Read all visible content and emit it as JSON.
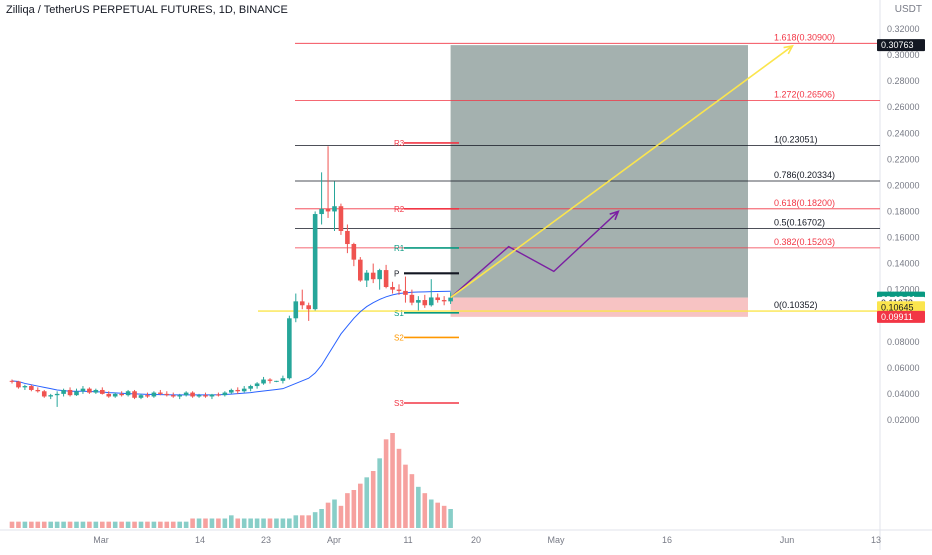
{
  "header": {
    "title": "Zilliqa / TetherUS PERPETUAL FUTURES, 1D, BINANCE",
    "currency": "USDT"
  },
  "colors": {
    "up": "#26a69a",
    "down": "#ef5350",
    "ma": "#2962ff",
    "fib_black": "#131722",
    "fib_red": "#f23645",
    "pivot_red": "#f23645",
    "pivot_green": "#089981",
    "pivot_orange": "#ff9800",
    "forecast": "#7b1fa2",
    "target_arrow": "#fbe54d",
    "profit_zone": "#9aa9a6",
    "loss_zone": "#f6b9b9"
  },
  "chart_data": {
    "type": "candlestick",
    "symbol": "ZILUSDT",
    "interval": "1D",
    "x_ticks": [
      "Mar",
      "14",
      "23",
      "Apr",
      "11",
      "20",
      "May",
      "16",
      "Jun",
      "13"
    ],
    "y_ticks": [
      "0.32000",
      "0.30000",
      "0.28000",
      "0.26000",
      "0.24000",
      "0.22000",
      "0.20000",
      "0.18000",
      "0.16000",
      "0.14000",
      "0.12000",
      "0.10000",
      "0.08000",
      "0.06000",
      "0.04000",
      "0.02000"
    ],
    "ylim": [
      0,
      0.33
    ],
    "price_tags": [
      {
        "label": "0.30763",
        "value": 0.30763,
        "style": "dark"
      },
      {
        "label": "0.11388",
        "value": 0.11388,
        "style": "green"
      },
      {
        "label": "09:18:31",
        "value": 0.11225,
        "style": "green"
      },
      {
        "label": "0.11278",
        "value": 0.10985,
        "style": "plain"
      },
      {
        "label": "0.10645",
        "value": 0.10645,
        "style": "yellow"
      },
      {
        "label": "0.09911",
        "value": 0.09911,
        "style": "red"
      }
    ],
    "candles": [
      {
        "o": 0.05,
        "h": 0.051,
        "l": 0.048,
        "c": 0.0495
      },
      {
        "o": 0.0495,
        "h": 0.05,
        "l": 0.044,
        "c": 0.045
      },
      {
        "o": 0.045,
        "h": 0.047,
        "l": 0.043,
        "c": 0.046
      },
      {
        "o": 0.046,
        "h": 0.047,
        "l": 0.042,
        "c": 0.043
      },
      {
        "o": 0.043,
        "h": 0.045,
        "l": 0.041,
        "c": 0.042
      },
      {
        "o": 0.042,
        "h": 0.043,
        "l": 0.037,
        "c": 0.038
      },
      {
        "o": 0.038,
        "h": 0.04,
        "l": 0.036,
        "c": 0.039
      },
      {
        "o": 0.039,
        "h": 0.042,
        "l": 0.03,
        "c": 0.04
      },
      {
        "o": 0.04,
        "h": 0.044,
        "l": 0.038,
        "c": 0.043
      },
      {
        "o": 0.043,
        "h": 0.045,
        "l": 0.038,
        "c": 0.039
      },
      {
        "o": 0.039,
        "h": 0.044,
        "l": 0.0385,
        "c": 0.042
      },
      {
        "o": 0.042,
        "h": 0.046,
        "l": 0.04,
        "c": 0.044
      },
      {
        "o": 0.044,
        "h": 0.045,
        "l": 0.04,
        "c": 0.041
      },
      {
        "o": 0.041,
        "h": 0.044,
        "l": 0.04,
        "c": 0.043
      },
      {
        "o": 0.043,
        "h": 0.045,
        "l": 0.0395,
        "c": 0.04
      },
      {
        "o": 0.04,
        "h": 0.042,
        "l": 0.037,
        "c": 0.038
      },
      {
        "o": 0.038,
        "h": 0.041,
        "l": 0.037,
        "c": 0.04
      },
      {
        "o": 0.04,
        "h": 0.042,
        "l": 0.038,
        "c": 0.039
      },
      {
        "o": 0.039,
        "h": 0.043,
        "l": 0.038,
        "c": 0.042
      },
      {
        "o": 0.042,
        "h": 0.043,
        "l": 0.036,
        "c": 0.037
      },
      {
        "o": 0.037,
        "h": 0.04,
        "l": 0.036,
        "c": 0.039
      },
      {
        "o": 0.039,
        "h": 0.041,
        "l": 0.037,
        "c": 0.038
      },
      {
        "o": 0.038,
        "h": 0.042,
        "l": 0.037,
        "c": 0.041
      },
      {
        "o": 0.041,
        "h": 0.043,
        "l": 0.039,
        "c": 0.04
      },
      {
        "o": 0.04,
        "h": 0.042,
        "l": 0.038,
        "c": 0.039
      },
      {
        "o": 0.039,
        "h": 0.041,
        "l": 0.037,
        "c": 0.038
      },
      {
        "o": 0.038,
        "h": 0.04,
        "l": 0.036,
        "c": 0.039
      },
      {
        "o": 0.039,
        "h": 0.042,
        "l": 0.038,
        "c": 0.041
      },
      {
        "o": 0.041,
        "h": 0.042,
        "l": 0.037,
        "c": 0.038
      },
      {
        "o": 0.038,
        "h": 0.04,
        "l": 0.037,
        "c": 0.039
      },
      {
        "o": 0.039,
        "h": 0.041,
        "l": 0.037,
        "c": 0.038
      },
      {
        "o": 0.038,
        "h": 0.04,
        "l": 0.036,
        "c": 0.0395
      },
      {
        "o": 0.0395,
        "h": 0.041,
        "l": 0.038,
        "c": 0.039
      },
      {
        "o": 0.039,
        "h": 0.042,
        "l": 0.038,
        "c": 0.041
      },
      {
        "o": 0.041,
        "h": 0.044,
        "l": 0.04,
        "c": 0.043
      },
      {
        "o": 0.043,
        "h": 0.045,
        "l": 0.04,
        "c": 0.042
      },
      {
        "o": 0.042,
        "h": 0.046,
        "l": 0.041,
        "c": 0.044
      },
      {
        "o": 0.044,
        "h": 0.047,
        "l": 0.042,
        "c": 0.046
      },
      {
        "o": 0.046,
        "h": 0.049,
        "l": 0.044,
        "c": 0.048
      },
      {
        "o": 0.048,
        "h": 0.053,
        "l": 0.047,
        "c": 0.051
      },
      {
        "o": 0.051,
        "h": 0.052,
        "l": 0.048,
        "c": 0.05
      },
      {
        "o": 0.05,
        "h": 0.05,
        "l": 0.049,
        "c": 0.05
      },
      {
        "o": 0.05,
        "h": 0.054,
        "l": 0.048,
        "c": 0.052
      },
      {
        "o": 0.052,
        "h": 0.1,
        "l": 0.051,
        "c": 0.098
      },
      {
        "o": 0.098,
        "h": 0.117,
        "l": 0.095,
        "c": 0.111
      },
      {
        "o": 0.111,
        "h": 0.12,
        "l": 0.105,
        "c": 0.108
      },
      {
        "o": 0.108,
        "h": 0.11,
        "l": 0.096,
        "c": 0.105
      },
      {
        "o": 0.105,
        "h": 0.18,
        "l": 0.104,
        "c": 0.178
      },
      {
        "o": 0.178,
        "h": 0.21,
        "l": 0.17,
        "c": 0.182
      },
      {
        "o": 0.182,
        "h": 0.23,
        "l": 0.175,
        "c": 0.18
      },
      {
        "o": 0.18,
        "h": 0.203,
        "l": 0.165,
        "c": 0.184
      },
      {
        "o": 0.184,
        "h": 0.186,
        "l": 0.162,
        "c": 0.165
      },
      {
        "o": 0.165,
        "h": 0.17,
        "l": 0.148,
        "c": 0.155
      },
      {
        "o": 0.155,
        "h": 0.156,
        "l": 0.138,
        "c": 0.143
      },
      {
        "o": 0.143,
        "h": 0.145,
        "l": 0.126,
        "c": 0.127
      },
      {
        "o": 0.127,
        "h": 0.135,
        "l": 0.122,
        "c": 0.133
      },
      {
        "o": 0.133,
        "h": 0.14,
        "l": 0.125,
        "c": 0.128
      },
      {
        "o": 0.128,
        "h": 0.136,
        "l": 0.12,
        "c": 0.135
      },
      {
        "o": 0.135,
        "h": 0.139,
        "l": 0.121,
        "c": 0.122
      },
      {
        "o": 0.122,
        "h": 0.126,
        "l": 0.117,
        "c": 0.12
      },
      {
        "o": 0.12,
        "h": 0.124,
        "l": 0.116,
        "c": 0.119
      },
      {
        "o": 0.119,
        "h": 0.13,
        "l": 0.11,
        "c": 0.116
      },
      {
        "o": 0.116,
        "h": 0.12,
        "l": 0.108,
        "c": 0.11
      },
      {
        "o": 0.11,
        "h": 0.115,
        "l": 0.104,
        "c": 0.112
      },
      {
        "o": 0.112,
        "h": 0.116,
        "l": 0.106,
        "c": 0.108
      },
      {
        "o": 0.108,
        "h": 0.128,
        "l": 0.107,
        "c": 0.114
      },
      {
        "o": 0.114,
        "h": 0.117,
        "l": 0.11,
        "c": 0.112
      },
      {
        "o": 0.112,
        "h": 0.115,
        "l": 0.108,
        "c": 0.111
      },
      {
        "o": 0.111,
        "h": 0.118,
        "l": 0.109,
        "c": 0.1139
      }
    ],
    "moving_average": [
      0.05,
      0.0495,
      0.048,
      0.047,
      0.046,
      0.045,
      0.044,
      0.043,
      0.0425,
      0.042,
      0.042,
      0.042,
      0.0418,
      0.0416,
      0.0414,
      0.041,
      0.0408,
      0.0405,
      0.0402,
      0.04,
      0.0398,
      0.0396,
      0.0395,
      0.0394,
      0.0393,
      0.0392,
      0.0392,
      0.0392,
      0.0392,
      0.0392,
      0.0392,
      0.0392,
      0.0393,
      0.0395,
      0.0398,
      0.0402,
      0.0406,
      0.041,
      0.0416,
      0.0422,
      0.0428,
      0.0434,
      0.044,
      0.046,
      0.048,
      0.05,
      0.052,
      0.056,
      0.062,
      0.07,
      0.078,
      0.086,
      0.092,
      0.098,
      0.103,
      0.107,
      0.11,
      0.1125,
      0.1145,
      0.116,
      0.117,
      0.1175,
      0.118,
      0.1182,
      0.1183,
      0.1185,
      0.1186,
      0.1187,
      0.1188
    ],
    "volumes": [
      2,
      2,
      2,
      2,
      2,
      2,
      2,
      2,
      2,
      2,
      2,
      2,
      2,
      2,
      2,
      2,
      2,
      2,
      2,
      2,
      2,
      2,
      2,
      2,
      2,
      2,
      2,
      2,
      3,
      3,
      3,
      3,
      3,
      3,
      4,
      3,
      3,
      3,
      3,
      3,
      3,
      3,
      3,
      3,
      4,
      4,
      4,
      5,
      6,
      8,
      9,
      7,
      11,
      12,
      14,
      16,
      18,
      22,
      28,
      30,
      25,
      20,
      17,
      13,
      11,
      9,
      8,
      7,
      6
    ],
    "fib_levels": [
      {
        "label": "1.618(0.30900)",
        "value": 0.309,
        "style": "red"
      },
      {
        "label": "1.272(0.26506)",
        "value": 0.26506,
        "style": "red"
      },
      {
        "label": "1(0.23051)",
        "value": 0.23051,
        "style": "black"
      },
      {
        "label": "0.786(0.20334)",
        "value": 0.20334,
        "style": "black"
      },
      {
        "label": "0.618(0.18200)",
        "value": 0.182,
        "style": "red"
      },
      {
        "label": "0.5(0.16702)",
        "value": 0.16702,
        "style": "black"
      },
      {
        "label": "0.382(0.15203)",
        "value": 0.15203,
        "style": "red"
      },
      {
        "label": "0(0.10352)",
        "value": 0.10352,
        "style": "black"
      }
    ],
    "pivots": [
      {
        "label": "R3",
        "value": 0.2326,
        "color": "pivot_red"
      },
      {
        "label": "R2",
        "value": 0.182,
        "color": "pivot_red"
      },
      {
        "label": "R1",
        "value": 0.152,
        "color": "pivot_green"
      },
      {
        "label": "P",
        "value": 0.1325,
        "color": "fib_black"
      },
      {
        "label": "S1",
        "value": 0.1022,
        "color": "pivot_green"
      },
      {
        "label": "S2",
        "value": 0.0833,
        "color": "pivot_orange"
      },
      {
        "label": "S3",
        "value": 0.033,
        "color": "pivot_red"
      }
    ],
    "entry_line": 0.10352,
    "position": {
      "target": 0.30763,
      "entry": 0.1139,
      "stop": 0.0991
    },
    "forecast_path": [
      [
        0,
        0.1139
      ],
      [
        9,
        0.153
      ],
      [
        16,
        0.134
      ],
      [
        26,
        0.18
      ]
    ],
    "target_arrow": [
      [
        0,
        0.1139
      ],
      [
        53,
        0.307
      ]
    ]
  }
}
